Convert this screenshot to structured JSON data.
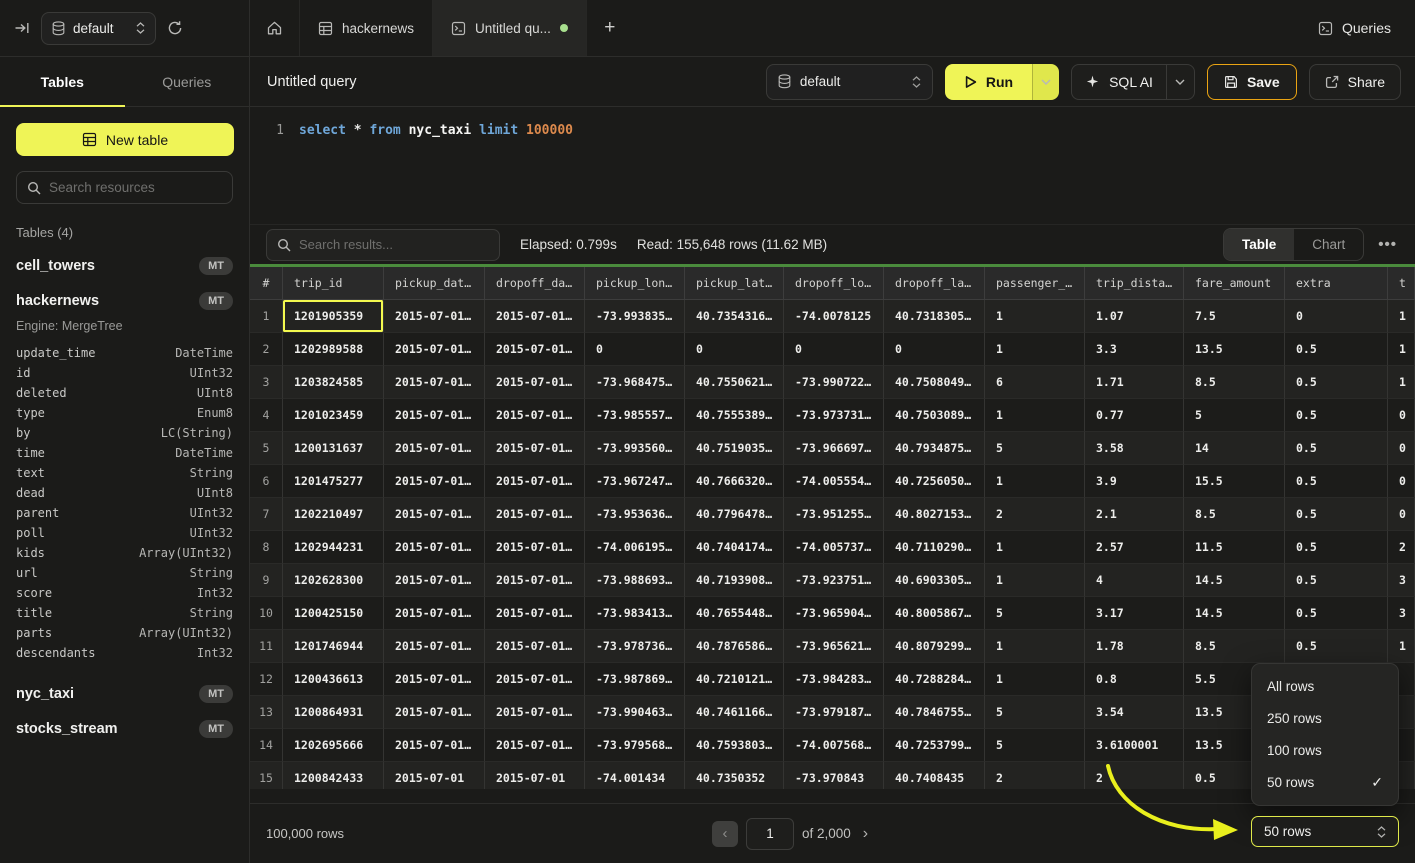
{
  "topbar": {
    "database_selector": {
      "value": "default"
    },
    "tabs": [
      {
        "type": "home"
      },
      {
        "type": "table",
        "label": "hackernews"
      },
      {
        "type": "query",
        "label": "Untitled qu...",
        "active": true,
        "unsaved": true
      }
    ],
    "new_tab_label": "+",
    "queries_label": "Queries"
  },
  "sidebar": {
    "tabs": [
      {
        "label": "Tables",
        "active": true
      },
      {
        "label": "Queries",
        "active": false
      }
    ],
    "new_table_label": "New table",
    "search_placeholder": "Search resources",
    "section_label": "Tables (4)",
    "tables": [
      {
        "name": "cell_towers",
        "badge": "MT"
      },
      {
        "name": "hackernews",
        "badge": "MT",
        "engine": "Engine: MergeTree"
      },
      {
        "name": "nyc_taxi",
        "badge": "MT"
      },
      {
        "name": "stocks_stream",
        "badge": "MT"
      }
    ],
    "hackernews_columns": [
      {
        "name": "update_time",
        "type": "DateTime"
      },
      {
        "name": "id",
        "type": "UInt32"
      },
      {
        "name": "deleted",
        "type": "UInt8"
      },
      {
        "name": "type",
        "type": "Enum8"
      },
      {
        "name": "by",
        "type": "LC(String)"
      },
      {
        "name": "time",
        "type": "DateTime"
      },
      {
        "name": "text",
        "type": "String"
      },
      {
        "name": "dead",
        "type": "UInt8"
      },
      {
        "name": "parent",
        "type": "UInt32"
      },
      {
        "name": "poll",
        "type": "UInt32"
      },
      {
        "name": "kids",
        "type": "Array(UInt32)"
      },
      {
        "name": "url",
        "type": "String"
      },
      {
        "name": "score",
        "type": "Int32"
      },
      {
        "name": "title",
        "type": "String"
      },
      {
        "name": "parts",
        "type": "Array(UInt32)"
      },
      {
        "name": "descendants",
        "type": "Int32"
      }
    ]
  },
  "query_toolbar": {
    "title": "Untitled query",
    "database": "default",
    "run_label": "Run",
    "sql_ai_label": "SQL AI",
    "save_label": "Save",
    "share_label": "Share"
  },
  "editor": {
    "line_number": "1",
    "tokens": [
      {
        "text": "select",
        "type": "keyword"
      },
      {
        "text": " * ",
        "type": "plain"
      },
      {
        "text": "from",
        "type": "keyword"
      },
      {
        "text": " nyc_taxi ",
        "type": "identifier"
      },
      {
        "text": "limit",
        "type": "keyword"
      },
      {
        "text": " 100000",
        "type": "number"
      }
    ]
  },
  "results_toolbar": {
    "search_placeholder": "Search results...",
    "elapsed": "Elapsed: 0.799s",
    "read": "Read: 155,648 rows (11.62 MB)",
    "views": [
      {
        "label": "Table",
        "active": true
      },
      {
        "label": "Chart",
        "active": false
      }
    ]
  },
  "results_table": {
    "columns": [
      "#",
      "trip_id",
      "pickup_dat…",
      "dropoff_da…",
      "pickup_lon…",
      "pickup_lat…",
      "dropoff_lo…",
      "dropoff_la…",
      "passenger_…",
      "trip_dista…",
      "fare_amount",
      "extra",
      "t"
    ],
    "selected_cell": {
      "row": 0,
      "col": 1
    },
    "rows": [
      [
        "1",
        "1201905359",
        "2015-07-01…",
        "2015-07-01…",
        "-73.993835…",
        "40.7354316…",
        "-74.0078125",
        "40.7318305…",
        "1",
        "1.07",
        "7.5",
        "0",
        "1"
      ],
      [
        "2",
        "1202989588",
        "2015-07-01…",
        "2015-07-01…",
        "0",
        "0",
        "0",
        "0",
        "1",
        "3.3",
        "13.5",
        "0.5",
        "1"
      ],
      [
        "3",
        "1203824585",
        "2015-07-01…",
        "2015-07-01…",
        "-73.968475…",
        "40.7550621…",
        "-73.990722…",
        "40.7508049…",
        "6",
        "1.71",
        "8.5",
        "0.5",
        "1"
      ],
      [
        "4",
        "1201023459",
        "2015-07-01…",
        "2015-07-01…",
        "-73.985557…",
        "40.7555389…",
        "-73.973731…",
        "40.7503089…",
        "1",
        "0.77",
        "5",
        "0.5",
        "0"
      ],
      [
        "5",
        "1200131637",
        "2015-07-01…",
        "2015-07-01…",
        "-73.993560…",
        "40.7519035…",
        "-73.966697…",
        "40.7934875…",
        "5",
        "3.58",
        "14",
        "0.5",
        "0"
      ],
      [
        "6",
        "1201475277",
        "2015-07-01…",
        "2015-07-01…",
        "-73.967247…",
        "40.7666320…",
        "-74.005554…",
        "40.7256050…",
        "1",
        "3.9",
        "15.5",
        "0.5",
        "0"
      ],
      [
        "7",
        "1202210497",
        "2015-07-01…",
        "2015-07-01…",
        "-73.953636…",
        "40.7796478…",
        "-73.951255…",
        "40.8027153…",
        "2",
        "2.1",
        "8.5",
        "0.5",
        "0"
      ],
      [
        "8",
        "1202944231",
        "2015-07-01…",
        "2015-07-01…",
        "-74.006195…",
        "40.7404174…",
        "-74.005737…",
        "40.7110290…",
        "1",
        "2.57",
        "11.5",
        "0.5",
        "2"
      ],
      [
        "9",
        "1202628300",
        "2015-07-01…",
        "2015-07-01…",
        "-73.988693…",
        "40.7193908…",
        "-73.923751…",
        "40.6903305…",
        "1",
        "4",
        "14.5",
        "0.5",
        "3"
      ],
      [
        "10",
        "1200425150",
        "2015-07-01…",
        "2015-07-01…",
        "-73.983413…",
        "40.7655448…",
        "-73.965904…",
        "40.8005867…",
        "5",
        "3.17",
        "14.5",
        "0.5",
        "3"
      ],
      [
        "11",
        "1201746944",
        "2015-07-01…",
        "2015-07-01…",
        "-73.978736…",
        "40.7876586…",
        "-73.965621…",
        "40.8079299…",
        "1",
        "1.78",
        "8.5",
        "0.5",
        "1"
      ],
      [
        "12",
        "1200436613",
        "2015-07-01…",
        "2015-07-01…",
        "-73.987869…",
        "40.7210121…",
        "-73.984283…",
        "40.7288284…",
        "1",
        "0.8",
        "5.5",
        "",
        ""
      ],
      [
        "13",
        "1200864931",
        "2015-07-01…",
        "2015-07-01…",
        "-73.990463…",
        "40.7461166…",
        "-73.979187…",
        "40.7846755…",
        "5",
        "3.54",
        "13.5",
        "",
        ""
      ],
      [
        "14",
        "1202695666",
        "2015-07-01…",
        "2015-07-01…",
        "-73.979568…",
        "40.7593803…",
        "-74.007568…",
        "40.7253799…",
        "5",
        "3.6100001",
        "13.5",
        "",
        ""
      ],
      [
        "15",
        "1200842433",
        "2015-07-01",
        "2015-07-01",
        "-74.001434",
        "40.7350352",
        "-73.970843",
        "40.7408435",
        "2",
        "2",
        "0.5",
        "",
        ""
      ]
    ]
  },
  "rows_menu": {
    "items": [
      "All rows",
      "250 rows",
      "100 rows",
      "50 rows"
    ],
    "selected": "50 rows"
  },
  "footer": {
    "total_rows": "100,000 rows",
    "page_value": "1",
    "page_of": "of 2,000",
    "rows_select_value": "50 rows"
  },
  "colors": {
    "accent_yellow": "#eff457",
    "save_border": "#eaa413",
    "table_accent_green": "#4a8b3c",
    "unsaved_dot_green": "#a8df8e",
    "cell_highlight": "#f3f94f"
  }
}
